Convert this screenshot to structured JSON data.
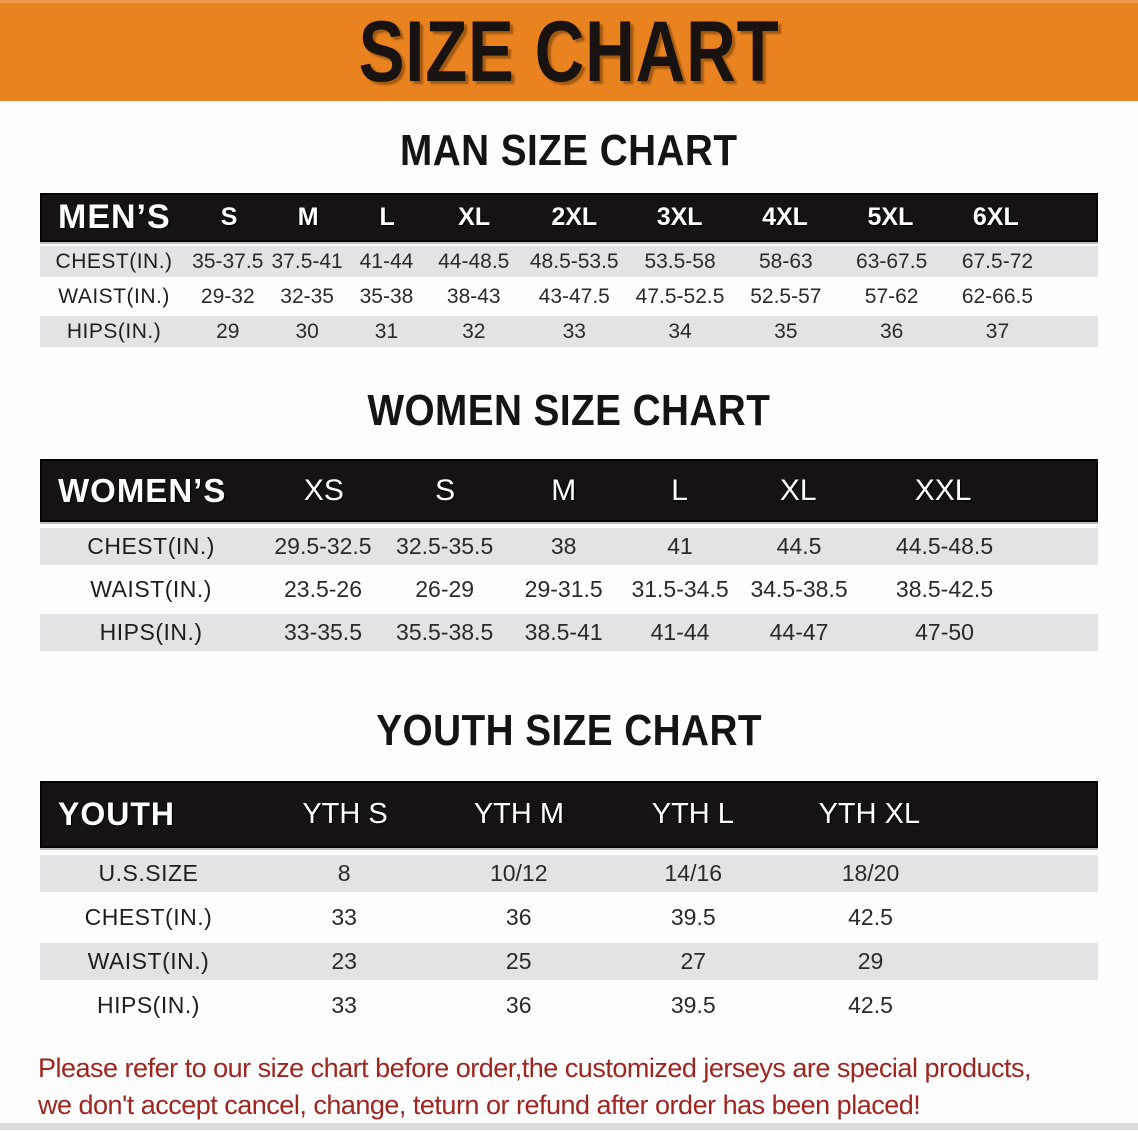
{
  "banner": {
    "title": "SIZE CHART"
  },
  "sections": [
    {
      "id": "men",
      "heading": "MAN SIZE CHART",
      "table": {
        "header_label": "MEN’S",
        "columns": [
          "S",
          "M",
          "L",
          "XL",
          "2XL",
          "3XL",
          "4XL",
          "5XL",
          "6XL"
        ],
        "rows": [
          {
            "label": "CHEST(IN.)",
            "values": [
              "35-37.5",
              "37.5-41",
              "41-44",
              "44-48.5",
              "48.5-53.5",
              "53.5-58",
              "58-63",
              "63-67.5",
              "67.5-72"
            ]
          },
          {
            "label": "WAIST(IN.)",
            "values": [
              "29-32",
              "32-35",
              "35-38",
              "38-43",
              "43-47.5",
              "47.5-52.5",
              "52.5-57",
              "57-62",
              "62-66.5"
            ]
          },
          {
            "label": "HIPS(IN.)",
            "values": [
              "29",
              "30",
              "31",
              "32",
              "33",
              "34",
              "35",
              "36",
              "37"
            ]
          }
        ]
      }
    },
    {
      "id": "women",
      "heading": "WOMEN SIZE CHART",
      "table": {
        "header_label": "WOMEN’S",
        "columns": [
          "XS",
          "S",
          "M",
          "L",
          "XL",
          "XXL"
        ],
        "rows": [
          {
            "label": "CHEST(IN.)",
            "values": [
              "29.5-32.5",
              "32.5-35.5",
              "38",
              "41",
              "44.5",
              "44.5-48.5"
            ]
          },
          {
            "label": "WAIST(IN.)",
            "values": [
              "23.5-26",
              "26-29",
              "29-31.5",
              "31.5-34.5",
              "34.5-38.5",
              "38.5-42.5"
            ]
          },
          {
            "label": "HIPS(IN.)",
            "values": [
              "33-35.5",
              "35.5-38.5",
              "38.5-41",
              "41-44",
              "44-47",
              "47-50"
            ]
          }
        ]
      }
    },
    {
      "id": "youth",
      "heading": "YOUTH SIZE CHART",
      "table": {
        "header_label": "YOUTH",
        "columns": [
          "YTH S",
          "YTH M",
          "YTH L",
          "YTH XL"
        ],
        "rows": [
          {
            "label": "U.S.SIZE",
            "values": [
              "8",
              "10/12",
              "14/16",
              "18/20"
            ]
          },
          {
            "label": "CHEST(IN.)",
            "values": [
              "33",
              "36",
              "39.5",
              "42.5"
            ]
          },
          {
            "label": "WAIST(IN.)",
            "values": [
              "23",
              "25",
              "27",
              "29"
            ]
          },
          {
            "label": "HIPS(IN.)",
            "values": [
              "33",
              "36",
              "39.5",
              "42.5"
            ]
          }
        ]
      }
    }
  ],
  "disclaimer": {
    "line1": "Please refer to our size chart before order,the customized jerseys are special products,",
    "line2": "we don't accept cancel, change, teturn or refund after order has been placed!"
  },
  "colors": {
    "banner_orange": "#E8831F",
    "table_header_black": "#171314",
    "row_stripe_gray": "#E3E3E5",
    "disclaimer_red": "#A0251E",
    "bottom_strip_gray": "#DCDCDE"
  }
}
